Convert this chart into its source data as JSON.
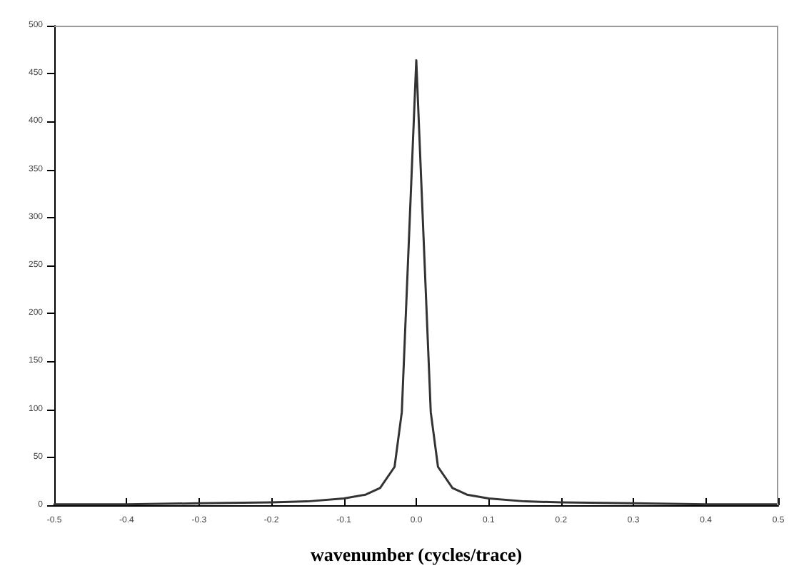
{
  "chart_data": {
    "type": "line",
    "xlabel": "wavenumber (cycles/trace)",
    "x": [
      -0.5,
      -0.4,
      -0.3,
      -0.2,
      -0.15,
      -0.1,
      -0.07,
      -0.05,
      -0.03,
      -0.02,
      -0.01,
      0,
      0.01,
      0.02,
      0.03,
      0.05,
      0.07,
      0.1,
      0.15,
      0.2,
      0.3,
      0.4,
      0.5
    ],
    "series": [
      {
        "color": "#333333",
        "values": [
          1,
          1,
          2,
          3,
          4,
          7,
          11,
          18,
          40,
          97,
          280,
          464,
          280,
          97,
          40,
          18,
          11,
          7,
          4,
          3,
          2,
          1,
          1
        ]
      }
    ],
    "xlim": [
      -0.5,
      0.5
    ],
    "xticks": [
      -0.5,
      -0.4,
      -0.3,
      -0.2,
      -0.1,
      {
        "value": 0,
        "label": "0.0"
      },
      0.1,
      0.2,
      0.3,
      0.4,
      0.5
    ],
    "ylim": [
      0,
      500
    ],
    "yticks": [
      0,
      50,
      100,
      150,
      200,
      250,
      300,
      350,
      400,
      450,
      500
    ],
    "grid": false,
    "marker": "none",
    "line_style": "solid"
  }
}
